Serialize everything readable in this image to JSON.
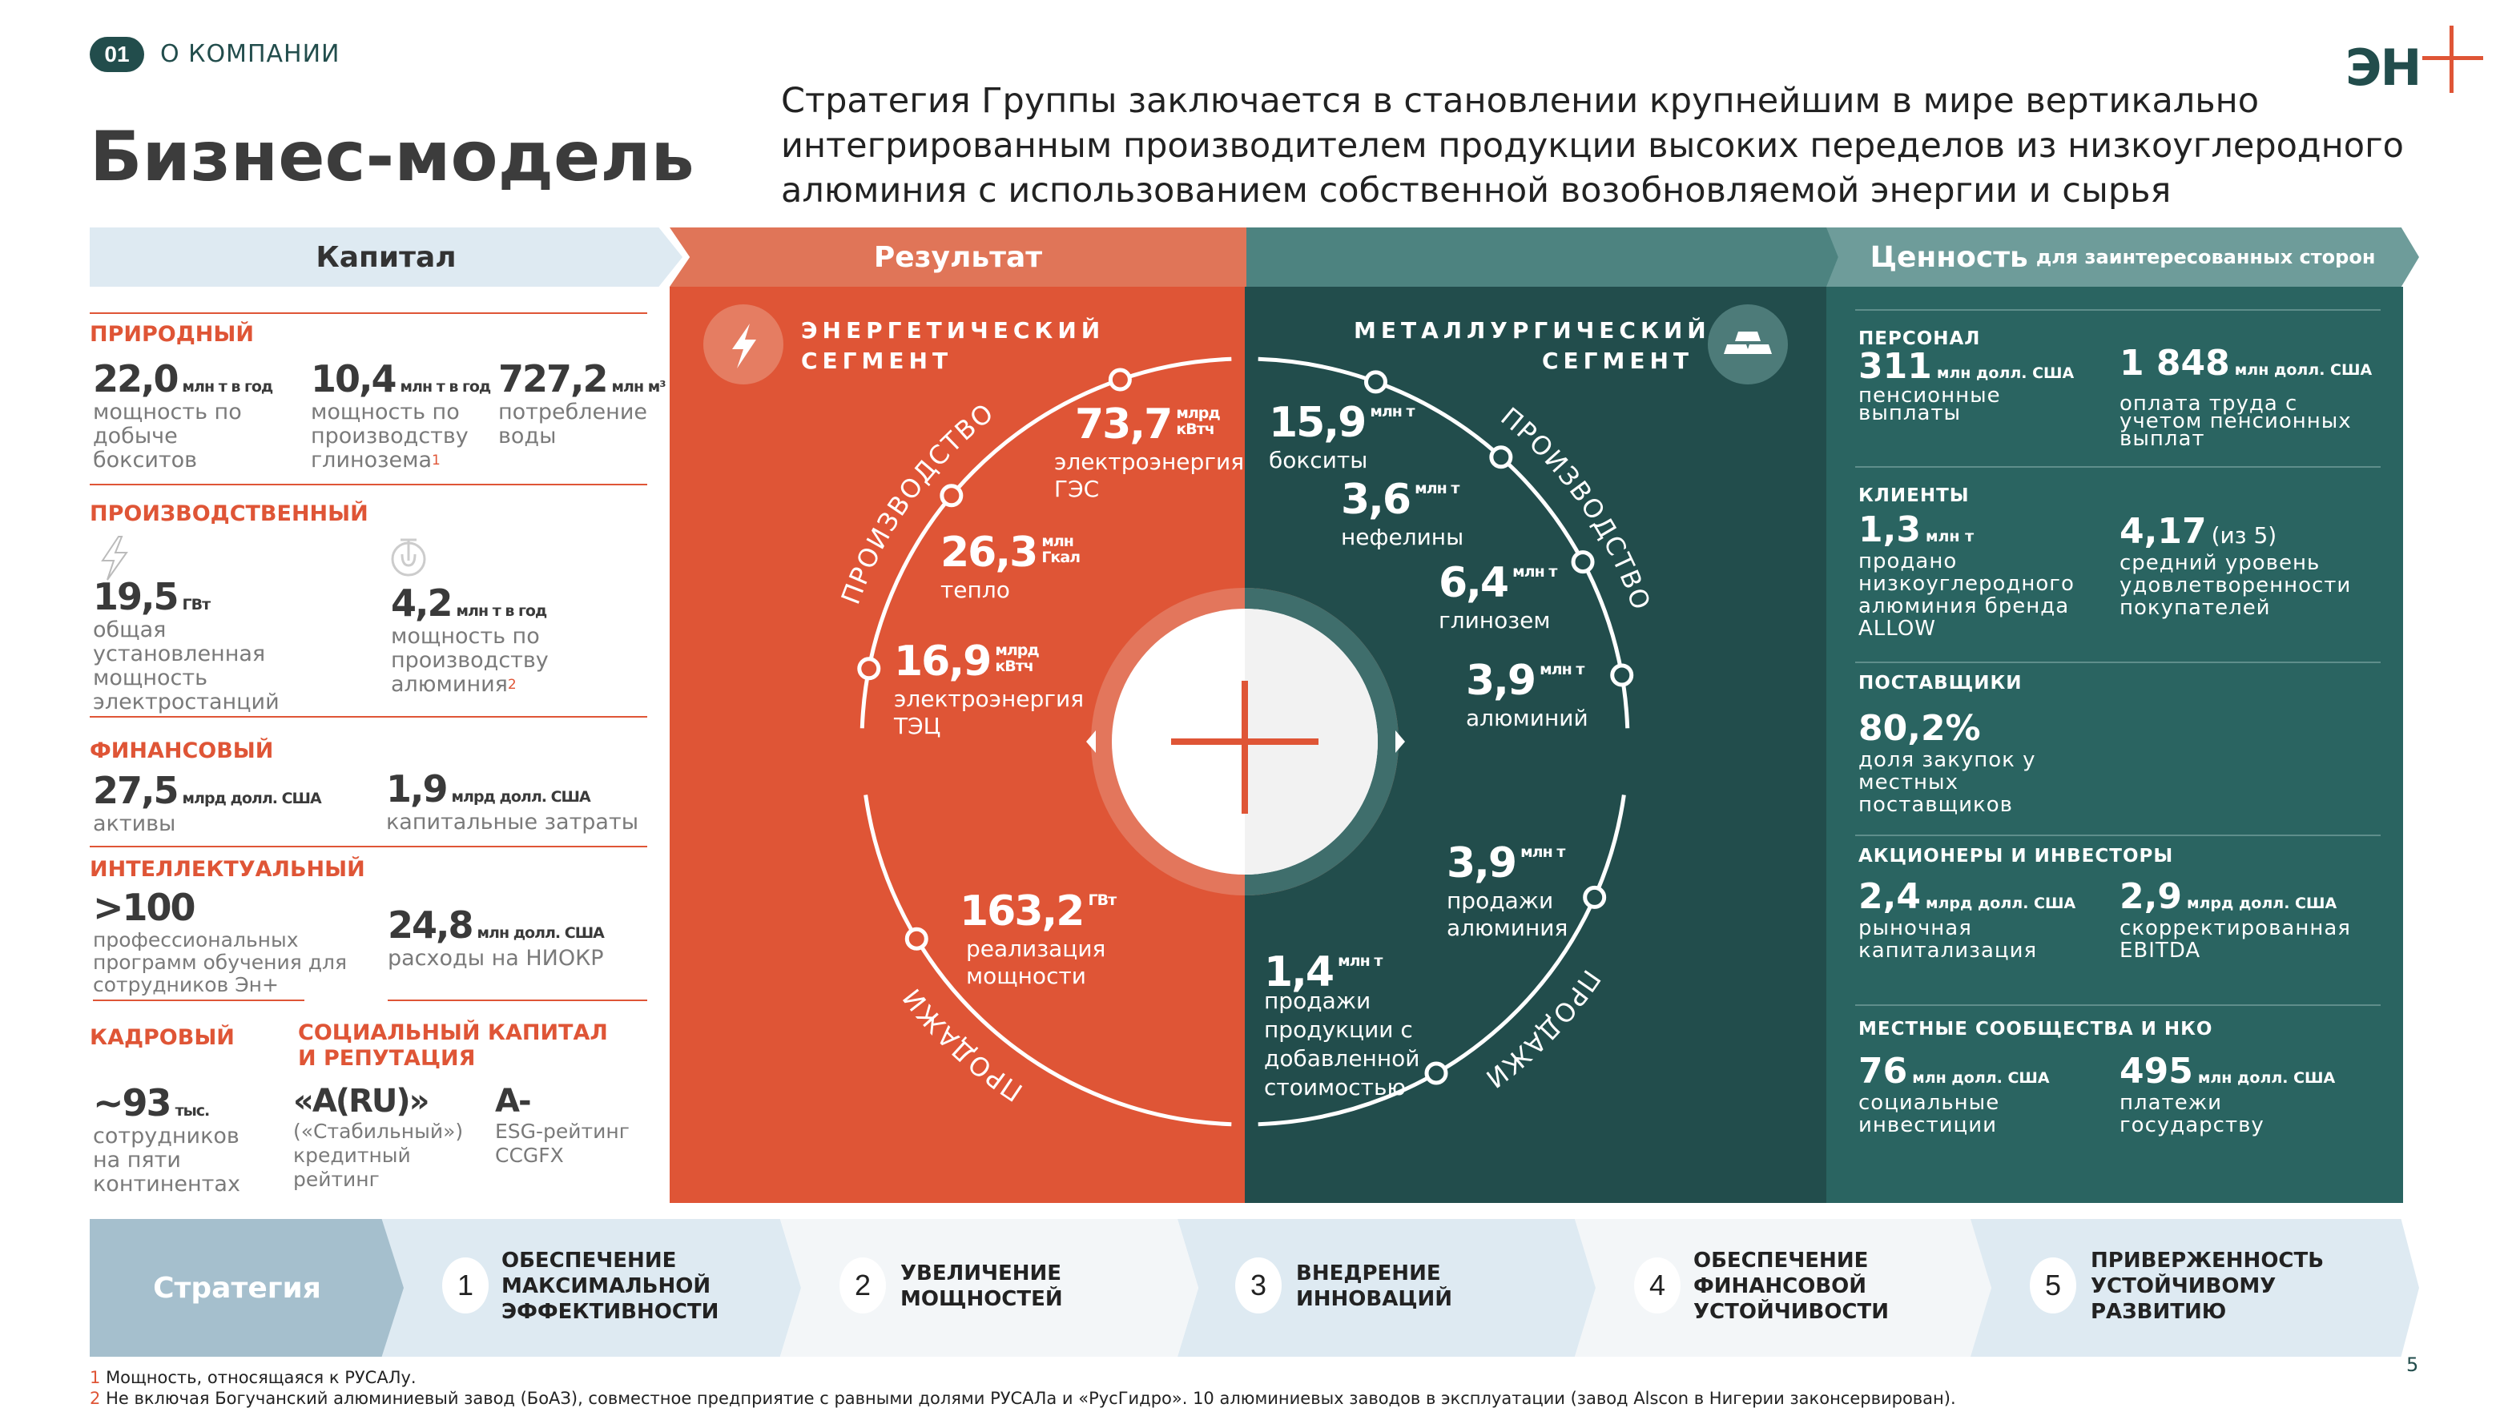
{
  "header": {
    "section_number": "01",
    "section_name": "О КОМПАНИИ",
    "title": "Бизнес-модель",
    "statement": "Стратегия Группы заключается в становлении крупнейшим в мире вертикально\nинтегрированным производителем продукции высоких переделов из низкоуглеродного\nалюминия с использованием собственной возобновляемой энергии и сырья",
    "logo_text": "ЭН+"
  },
  "colors": {
    "accent": "#df5536",
    "dark_teal": "#224d4c",
    "teal": "#2a6461",
    "light_blue": "#deeaf2"
  },
  "columns": {
    "capital": "Капитал",
    "result": "Результат",
    "value": "Ценность",
    "value_sub": "для заинтересованных сторон"
  },
  "capital": {
    "natural": {
      "title": "ПРИРОДНЫЙ",
      "items": [
        {
          "value": "22,0",
          "unit": "млн т в год",
          "desc": "мощность по\nдобыче\nбокситов"
        },
        {
          "value": "10,4",
          "unit": "млн т в год",
          "desc": "мощность по\nпроизводству\nглинозема",
          "sup": "1"
        },
        {
          "value": "727,2",
          "unit": "млн м³",
          "desc": "потребление\nводы"
        }
      ]
    },
    "production": {
      "title": "ПРОИЗВОДСТВЕННЫЙ",
      "items": [
        {
          "icon": "lightning-icon",
          "value": "19,5",
          "unit": "ГВт",
          "desc": "общая\nустановленная\nмощность\nэлектростанций"
        },
        {
          "icon": "magnet-icon",
          "value": "4,2",
          "unit": "млн т в год",
          "desc": "мощность по\nпроизводству\nалюминия",
          "sup": "2"
        }
      ]
    },
    "financial": {
      "title": "ФИНАНСОВЫЙ",
      "items": [
        {
          "value": "27,5",
          "unit": "млрд долл. США",
          "desc": "активы"
        },
        {
          "value": "1,9",
          "unit": "млрд долл. США",
          "desc": "капитальные затраты"
        }
      ]
    },
    "intellectual": {
      "title": "ИНТЕЛЛЕКТУАЛЬНЫЙ",
      "items": [
        {
          "value": ">100",
          "unit": "",
          "desc": "профессиональных\nпрограмм обучения для\nсотрудников Эн+"
        },
        {
          "value": "24,8",
          "unit": "млн долл. США",
          "desc": "расходы на НИОКР"
        }
      ]
    },
    "human": {
      "title": "КАДРОВЫЙ",
      "items": [
        {
          "value": "~93",
          "unit": "тыс.",
          "desc": "сотрудников\nна пяти\nконтинентах"
        }
      ]
    },
    "social": {
      "title": "СОЦИАЛЬНЫЙ КАПИТАЛ\nИ РЕПУТАЦИЯ",
      "items": [
        {
          "value": "«A(RU)»",
          "unit": "",
          "desc": "(«Стабильный»)\nкредитный\nрейтинг"
        },
        {
          "value": "A-",
          "unit": "",
          "desc": "ESG-рейтинг\nCCGFX"
        }
      ]
    }
  },
  "energy": {
    "title": "ЭНЕРГЕТИЧЕСКИЙ\nСЕГМЕНТ",
    "icon": "lightning-icon",
    "production_label": "ПРОИЗВОДСТВО",
    "sales_label": "ПРОДАЖИ",
    "items": [
      {
        "value": "73,7",
        "unit": "млрд\nкВтч",
        "desc": "электроэнергия\nГЭС"
      },
      {
        "value": "26,3",
        "unit": "млн\nГкал",
        "desc": "тепло"
      },
      {
        "value": "16,9",
        "unit": "млрд\nкВтч",
        "desc": "электроэнергия\nТЭЦ"
      },
      {
        "value": "163,2",
        "unit": "ГВт",
        "desc": "реализация\nмощности"
      }
    ]
  },
  "metals": {
    "title": "МЕТАЛЛУРГИЧЕСКИЙ\nСЕГМЕНТ",
    "icon": "aluminium-ingots-icon",
    "production_label": "ПРОИЗВОДСТВО",
    "sales_label": "ПРОДАЖИ",
    "items": [
      {
        "value": "15,9",
        "unit": "млн т",
        "desc": "бокситы"
      },
      {
        "value": "3,6",
        "unit": "млн т",
        "desc": "нефелины"
      },
      {
        "value": "6,4",
        "unit": "млн т",
        "desc": "глинозем"
      },
      {
        "value": "3,9",
        "unit": "млн т",
        "desc": "алюминий"
      },
      {
        "value": "3,9",
        "unit": "млн т",
        "desc": "продажи\nалюминия"
      },
      {
        "value": "1,4",
        "unit": "млн т",
        "desc": "продажи\nпродукции с\nдобавленной\nстоимостью"
      }
    ]
  },
  "value": {
    "personnel": {
      "title": "ПЕРСОНАЛ",
      "items": [
        {
          "value": "311",
          "unit": "млн долл. США",
          "desc": "пенсионные\nвыплаты"
        },
        {
          "value": "1 848",
          "unit": "млн долл. США",
          "desc": "оплата труда с\nучетом пенсионных\nвыплат"
        }
      ]
    },
    "clients": {
      "title": "КЛИЕНТЫ",
      "items": [
        {
          "value": "1,3",
          "unit": "млн т",
          "desc": "продано\nнизкоуглеродного\nалюминия бренда\nALLOW"
        },
        {
          "value": "4,17",
          "unit": "(из 5)",
          "desc": "средний уровень\nудовлетворенности\nпокупателей"
        }
      ]
    },
    "suppliers": {
      "title": "ПОСТАВЩИКИ",
      "items": [
        {
          "value": "80,2%",
          "unit": "",
          "desc": "доля закупок у\nместных\nпоставщиков"
        }
      ]
    },
    "investors": {
      "title": "АКЦИОНЕРЫ И ИНВЕСТОРЫ",
      "items": [
        {
          "value": "2,4",
          "unit": "млрд долл. США",
          "desc": "рыночная\nкапитализация"
        },
        {
          "value": "2,9",
          "unit": "млрд долл. США",
          "desc": "скорректированная\nEBITDA"
        }
      ]
    },
    "communities": {
      "title": "МЕСТНЫЕ СООБЩЕСТВА И НКО",
      "items": [
        {
          "value": "76",
          "unit": "млн долл. США",
          "desc": "социальные\nинвестиции"
        },
        {
          "value": "495",
          "unit": "млн долл. США",
          "desc": "платежи\nгосударству"
        }
      ]
    }
  },
  "strategy": {
    "label": "Стратегия",
    "steps": [
      {
        "num": "1",
        "label": "ОБЕСПЕЧЕНИЕ\nМАКСИМАЛЬНОЙ\nЭФФЕКТИВНОСТИ"
      },
      {
        "num": "2",
        "label": "УВЕЛИЧЕНИЕ\nМОЩНОСТЕЙ"
      },
      {
        "num": "3",
        "label": "ВНЕДРЕНИЕ\nИННОВАЦИЙ"
      },
      {
        "num": "4",
        "label": "ОБЕСПЕЧЕНИЕ\nФИНАНСОВОЙ\nУСТОЙЧИВОСТИ"
      },
      {
        "num": "5",
        "label": "ПРИВЕРЖЕННОСТЬ\nУСТОЙЧИВОМУ\nРАЗВИТИЮ"
      }
    ]
  },
  "footnotes": [
    {
      "num": "1",
      "text": "Мощность, относящаяся к РУСАЛу."
    },
    {
      "num": "2",
      "text": "Не включая Богучанский алюминиевый завод (БоАЗ), совместное предприятие с равными долями РУСАЛа и «РусГидро». 10 алюминиевых заводов в эксплуатации (завод Alscon в Нигерии законсервирован)."
    }
  ],
  "page_number": "5"
}
